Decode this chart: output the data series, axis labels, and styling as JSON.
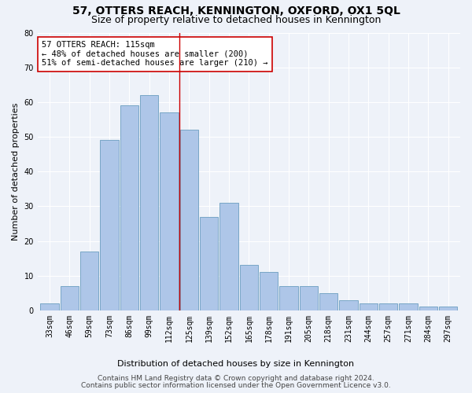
{
  "title": "57, OTTERS REACH, KENNINGTON, OXFORD, OX1 5QL",
  "subtitle": "Size of property relative to detached houses in Kennington",
  "xlabel": "Distribution of detached houses by size in Kennington",
  "ylabel": "Number of detached properties",
  "categories": [
    "33sqm",
    "46sqm",
    "59sqm",
    "73sqm",
    "86sqm",
    "99sqm",
    "112sqm",
    "125sqm",
    "139sqm",
    "152sqm",
    "165sqm",
    "178sqm",
    "191sqm",
    "205sqm",
    "218sqm",
    "231sqm",
    "244sqm",
    "257sqm",
    "271sqm",
    "284sqm",
    "297sqm"
  ],
  "values": [
    2,
    7,
    17,
    49,
    59,
    62,
    57,
    52,
    27,
    31,
    13,
    11,
    7,
    7,
    5,
    3,
    2,
    2,
    2,
    1,
    1
  ],
  "bar_color": "#aec6e8",
  "bar_edge_color": "#6a9ec0",
  "vline_x_index": 6,
  "vline_color": "#cc0000",
  "annotation_text": "57 OTTERS REACH: 115sqm\n← 48% of detached houses are smaller (200)\n51% of semi-detached houses are larger (210) →",
  "annotation_box_color": "#ffffff",
  "annotation_box_edge_color": "#cc0000",
  "ylim": [
    0,
    80
  ],
  "yticks": [
    0,
    10,
    20,
    30,
    40,
    50,
    60,
    70,
    80
  ],
  "footer_line1": "Contains HM Land Registry data © Crown copyright and database right 2024.",
  "footer_line2": "Contains public sector information licensed under the Open Government Licence v3.0.",
  "bg_color": "#eef2f9",
  "grid_color": "#ffffff",
  "title_fontsize": 10,
  "subtitle_fontsize": 9,
  "axis_label_fontsize": 8,
  "tick_fontsize": 7,
  "footer_fontsize": 6.5,
  "annotation_fontsize": 7.5
}
